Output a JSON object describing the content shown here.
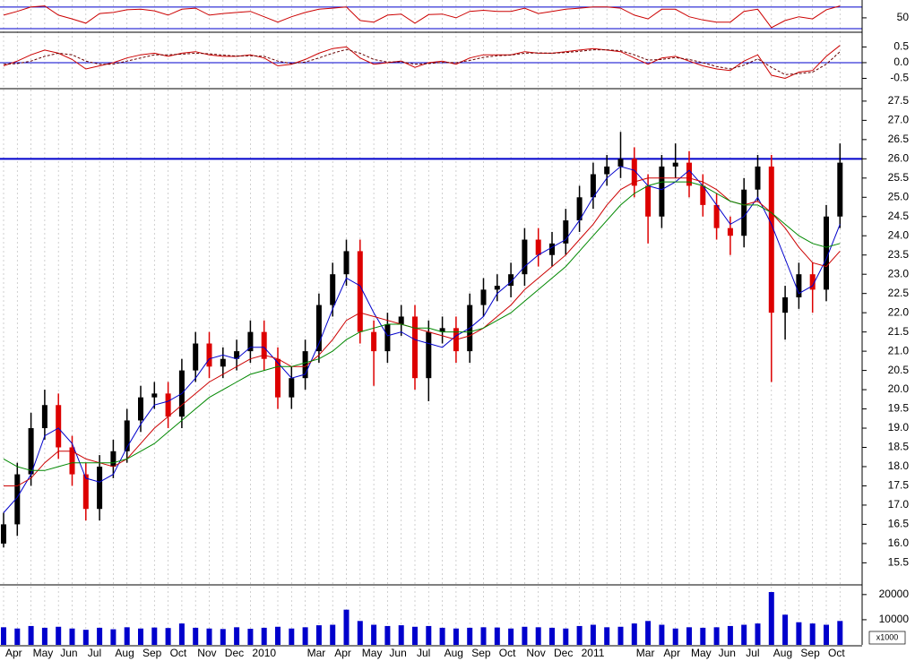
{
  "chart_data": [
    {
      "type": "line",
      "ylim": [
        25,
        83
      ],
      "yticks": [
        50
      ],
      "reference_lines": [
        30,
        70
      ],
      "reference_color": "#0000cc",
      "series": [
        {
          "color": "#cc0000",
          "values": [
            55,
            62,
            70,
            72,
            55,
            48,
            40,
            58,
            60,
            65,
            66,
            63,
            55,
            66,
            68,
            55,
            58,
            60,
            62,
            52,
            42,
            52,
            60,
            66,
            68,
            70,
            45,
            42,
            55,
            57,
            40,
            56,
            57,
            50,
            62,
            64,
            62,
            62,
            68,
            58,
            62,
            66,
            68,
            70,
            70,
            68,
            55,
            48,
            66,
            66,
            52,
            46,
            42,
            42,
            62,
            66,
            32,
            45,
            52,
            48,
            65,
            72
          ]
        }
      ]
    },
    {
      "type": "line",
      "ylim": [
        -0.8,
        0.94
      ],
      "yticks": [
        0.5,
        {
          "value": 0,
          "label": "0.0"
        },
        -0.5
      ],
      "reference_lines": [
        0
      ],
      "reference_color": "#0000cc",
      "series": [
        {
          "color": "#cc0000",
          "values": [
            -0.1,
            0.05,
            0.25,
            0.4,
            0.3,
            0.1,
            -0.2,
            -0.1,
            0.0,
            0.15,
            0.25,
            0.3,
            0.2,
            0.3,
            0.35,
            0.25,
            0.2,
            0.2,
            0.25,
            0.15,
            -0.1,
            -0.05,
            0.1,
            0.3,
            0.45,
            0.5,
            0.15,
            -0.05,
            0.0,
            0.05,
            -0.15,
            0.0,
            0.05,
            -0.05,
            0.15,
            0.25,
            0.25,
            0.25,
            0.35,
            0.3,
            0.3,
            0.35,
            0.4,
            0.45,
            0.4,
            0.35,
            0.15,
            -0.05,
            0.15,
            0.2,
            0.05,
            -0.1,
            -0.2,
            -0.25,
            0.05,
            0.25,
            -0.4,
            -0.5,
            -0.3,
            -0.25,
            0.2,
            0.55
          ]
        },
        {
          "color": "#660000",
          "dashed": true,
          "values": [
            -0.05,
            -0.03,
            0.05,
            0.2,
            0.3,
            0.25,
            0.05,
            -0.05,
            -0.05,
            0.05,
            0.15,
            0.25,
            0.25,
            0.27,
            0.3,
            0.28,
            0.24,
            0.21,
            0.22,
            0.2,
            0.05,
            -0.03,
            0.02,
            0.15,
            0.3,
            0.42,
            0.3,
            0.1,
            0.02,
            0.03,
            -0.05,
            -0.03,
            0.01,
            0.0,
            0.07,
            0.17,
            0.22,
            0.24,
            0.3,
            0.31,
            0.3,
            0.32,
            0.36,
            0.41,
            0.41,
            0.38,
            0.25,
            0.08,
            0.1,
            0.16,
            0.1,
            0.0,
            -0.12,
            -0.2,
            -0.08,
            0.12,
            -0.15,
            -0.38,
            -0.35,
            -0.3,
            -0.05,
            0.35
          ]
        }
      ]
    },
    {
      "type": "candlestick",
      "ylim": [
        14.95,
        27.8
      ],
      "up_color": "#000000",
      "down_color": "#dd0000",
      "reference_lines": [
        26
      ],
      "reference_color": "#0000cc",
      "yticks": [
        15.5,
        {
          "value": 16,
          "label": "16.0"
        },
        16.5,
        {
          "value": 17,
          "label": "17.0"
        },
        17.5,
        {
          "value": 18,
          "label": "18.0"
        },
        18.5,
        {
          "value": 19,
          "label": "19.0"
        },
        19.5,
        {
          "value": 20,
          "label": "20.0"
        },
        20.5,
        {
          "value": 21,
          "label": "21.0"
        },
        21.5,
        {
          "value": 22,
          "label": "22.0"
        },
        22.5,
        {
          "value": 23,
          "label": "23.0"
        },
        23.5,
        {
          "value": 24,
          "label": "24.0"
        },
        24.5,
        {
          "value": 25,
          "label": "25.0"
        },
        25.5,
        {
          "value": 26,
          "label": "26.0"
        },
        26.5,
        {
          "value": 27,
          "label": "27.0"
        },
        27.5
      ],
      "open": [
        16.0,
        16.5,
        17.8,
        19.0,
        19.6,
        18.5,
        17.8,
        16.9,
        18.0,
        18.4,
        19.2,
        19.8,
        19.9,
        19.3,
        20.5,
        21.2,
        20.6,
        20.8,
        21.0,
        21.5,
        20.8,
        19.8,
        20.3,
        21.0,
        22.2,
        23.0,
        23.6,
        21.5,
        21.0,
        21.7,
        21.9,
        20.3,
        21.5,
        21.6,
        21.0,
        22.2,
        22.6,
        22.7,
        23.0,
        23.9,
        23.5,
        23.8,
        24.4,
        25.0,
        25.6,
        25.8,
        26.0,
        25.3,
        24.5,
        25.8,
        25.9,
        25.3,
        24.8,
        24.2,
        24.0,
        25.2,
        25.8,
        22.0,
        22.4,
        23.0,
        22.6,
        24.5
      ],
      "high": [
        16.8,
        18.1,
        19.4,
        20.0,
        19.9,
        18.8,
        18.1,
        18.3,
        18.7,
        19.5,
        20.1,
        20.2,
        20.2,
        20.8,
        21.5,
        21.5,
        21.1,
        21.3,
        21.8,
        21.8,
        21.1,
        20.6,
        21.3,
        22.5,
        23.3,
        23.9,
        23.9,
        21.8,
        22.0,
        22.2,
        22.2,
        21.8,
        21.9,
        21.9,
        22.5,
        22.9,
        23.0,
        23.3,
        24.2,
        24.2,
        24.1,
        24.7,
        25.3,
        25.9,
        26.1,
        26.7,
        26.3,
        25.6,
        26.1,
        26.4,
        26.2,
        25.6,
        25.1,
        24.5,
        25.5,
        26.1,
        26.1,
        22.7,
        23.3,
        23.3,
        24.8,
        26.4
      ],
      "low": [
        15.9,
        16.2,
        17.5,
        18.7,
        18.2,
        17.5,
        16.6,
        16.6,
        17.7,
        18.1,
        18.9,
        19.5,
        19.0,
        19.0,
        20.2,
        20.3,
        20.3,
        20.5,
        20.7,
        20.5,
        19.5,
        19.5,
        20.0,
        20.7,
        21.9,
        22.7,
        21.2,
        20.1,
        20.7,
        21.4,
        20.0,
        19.7,
        21.2,
        20.7,
        20.7,
        21.9,
        22.3,
        22.4,
        22.7,
        23.2,
        23.2,
        23.5,
        24.1,
        24.7,
        25.3,
        25.5,
        25.0,
        23.8,
        24.2,
        25.5,
        25.0,
        24.5,
        23.9,
        23.5,
        23.7,
        24.9,
        20.2,
        21.3,
        22.1,
        22.0,
        22.3,
        24.2
      ],
      "close": [
        16.5,
        17.8,
        19.0,
        19.6,
        18.5,
        17.8,
        16.9,
        18.0,
        18.4,
        19.2,
        19.8,
        19.9,
        19.3,
        20.5,
        21.2,
        20.6,
        20.8,
        21.0,
        21.5,
        20.8,
        19.8,
        20.3,
        21.0,
        22.2,
        23.0,
        23.6,
        21.5,
        21.0,
        21.7,
        21.9,
        20.3,
        21.5,
        21.6,
        21.0,
        22.2,
        22.6,
        22.7,
        23.0,
        23.9,
        23.5,
        23.8,
        24.4,
        25.0,
        25.6,
        25.8,
        26.0,
        25.3,
        24.5,
        25.8,
        25.9,
        25.3,
        24.8,
        24.2,
        24.0,
        25.2,
        25.8,
        22.0,
        22.4,
        23.0,
        22.6,
        24.5,
        25.9
      ],
      "series": [
        {
          "color": "#0000cc",
          "values": [
            16.8,
            17.2,
            17.8,
            18.8,
            19.0,
            18.6,
            17.7,
            17.6,
            17.8,
            18.5,
            19.1,
            19.6,
            19.7,
            19.9,
            20.3,
            20.8,
            20.9,
            20.8,
            21.1,
            21.1,
            20.7,
            20.3,
            20.4,
            21.2,
            22.1,
            22.9,
            22.7,
            22.0,
            21.4,
            21.5,
            21.3,
            21.2,
            21.1,
            21.4,
            21.6,
            21.9,
            22.5,
            22.8,
            23.2,
            23.5,
            23.7,
            23.9,
            24.4,
            25.0,
            25.5,
            25.8,
            25.7,
            25.3,
            25.2,
            25.4,
            25.7,
            25.3,
            24.8,
            24.3,
            24.5,
            25.0,
            24.3,
            23.4,
            22.5,
            22.7,
            23.4,
            24.3
          ]
        },
        {
          "color": "#cc0000",
          "values": [
            17.5,
            17.5,
            17.7,
            18.1,
            18.4,
            18.4,
            18.2,
            18.1,
            18.0,
            18.2,
            18.6,
            19.0,
            19.3,
            19.6,
            19.9,
            20.2,
            20.4,
            20.6,
            20.8,
            20.9,
            20.8,
            20.6,
            20.6,
            20.9,
            21.3,
            21.8,
            22.0,
            21.9,
            21.8,
            21.7,
            21.6,
            21.5,
            21.4,
            21.3,
            21.4,
            21.6,
            21.9,
            22.2,
            22.6,
            22.9,
            23.2,
            23.5,
            23.9,
            24.3,
            24.8,
            25.2,
            25.4,
            25.5,
            25.5,
            25.5,
            25.5,
            25.4,
            25.2,
            24.9,
            24.8,
            24.9,
            24.6,
            24.2,
            23.7,
            23.3,
            23.2,
            23.6
          ]
        },
        {
          "color": "#008800",
          "values": [
            18.2,
            18.0,
            17.9,
            17.9,
            18.0,
            18.1,
            18.1,
            18.1,
            18.1,
            18.2,
            18.4,
            18.6,
            18.9,
            19.2,
            19.5,
            19.8,
            20.0,
            20.2,
            20.4,
            20.5,
            20.6,
            20.6,
            20.7,
            20.8,
            21.0,
            21.3,
            21.5,
            21.6,
            21.7,
            21.7,
            21.6,
            21.6,
            21.5,
            21.5,
            21.5,
            21.6,
            21.8,
            22.0,
            22.3,
            22.6,
            22.9,
            23.2,
            23.6,
            24.0,
            24.4,
            24.8,
            25.1,
            25.3,
            25.4,
            25.4,
            25.4,
            25.3,
            25.1,
            24.9,
            24.8,
            24.8,
            24.6,
            24.3,
            24.0,
            23.8,
            23.7,
            23.8
          ]
        }
      ]
    },
    {
      "type": "bar",
      "ylim": [
        0,
        23500
      ],
      "yticks": [
        10000,
        20000
      ],
      "unit_label": "x1000",
      "color": "#0000cc",
      "categories": [
        "Apr",
        null,
        "May",
        null,
        "Jun",
        null,
        "Jul",
        null,
        "Aug",
        null,
        "Sep",
        null,
        "Oct",
        null,
        "Nov",
        null,
        "Dec",
        null,
        "2010",
        null,
        null,
        null,
        "Mar",
        null,
        "Apr",
        null,
        "May",
        null,
        "Jun",
        null,
        "Jul",
        null,
        "Aug",
        null,
        "Sep",
        null,
        "Oct",
        null,
        "Nov",
        null,
        "Dec",
        null,
        "2011",
        null,
        null,
        null,
        "Mar",
        null,
        "Apr",
        null,
        "May",
        null,
        "Jun",
        null,
        "Jul",
        null,
        "Aug",
        null,
        "Sep",
        null,
        "Oct",
        null
      ],
      "values": [
        7000,
        6500,
        7500,
        6800,
        7200,
        6500,
        6000,
        6800,
        6200,
        7000,
        6500,
        6900,
        6700,
        8500,
        6800,
        6500,
        6300,
        7000,
        6400,
        6800,
        7200,
        6500,
        7000,
        7800,
        8000,
        14000,
        9500,
        8000,
        7500,
        7800,
        7200,
        7500,
        6800,
        6500,
        6800,
        7000,
        6900,
        6500,
        7200,
        7000,
        6800,
        6500,
        7500,
        8000,
        7000,
        7200,
        8500,
        9500,
        8000,
        6500,
        7000,
        6800,
        7000,
        7500,
        8000,
        8500,
        21000,
        12000,
        9000,
        8500,
        8000,
        9500
      ]
    }
  ]
}
